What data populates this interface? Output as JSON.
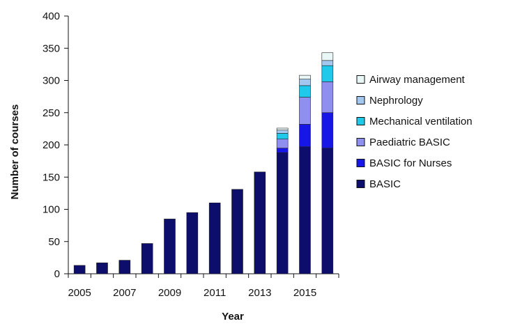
{
  "chart_data": {
    "type": "bar",
    "stacked": true,
    "title": "",
    "xlabel": "Year",
    "ylabel": "Number of courses",
    "categories": [
      "2005",
      "2006",
      "2007",
      "2008",
      "2009",
      "2010",
      "2011",
      "2012",
      "2013",
      "2014",
      "2015",
      "2016"
    ],
    "x_tick_labels": [
      "2005",
      "2007",
      "2009",
      "2011",
      "2013",
      "2015"
    ],
    "ylim": [
      0,
      400
    ],
    "y_ticks": [
      0,
      50,
      100,
      150,
      200,
      250,
      300,
      350,
      400
    ],
    "grid": false,
    "legend_position": "right",
    "series": [
      {
        "name": "BASIC",
        "color": "#0d0d6b",
        "values": [
          13,
          17,
          21,
          47,
          85,
          95,
          110,
          131,
          158,
          188,
          197,
          195
        ]
      },
      {
        "name": "BASIC for Nurses",
        "color": "#1616e6",
        "values": [
          0,
          0,
          0,
          0,
          0,
          0,
          0,
          0,
          0,
          7,
          35,
          55
        ]
      },
      {
        "name": "Paediatric BASIC",
        "color": "#8f8ff0",
        "values": [
          0,
          0,
          0,
          0,
          0,
          0,
          0,
          0,
          0,
          14,
          42,
          48
        ]
      },
      {
        "name": "Mechanical ventilation",
        "color": "#1fc9ea",
        "values": [
          0,
          0,
          0,
          0,
          0,
          0,
          0,
          0,
          0,
          9,
          18,
          25
        ]
      },
      {
        "name": "Nephrology",
        "color": "#a3c7ef",
        "values": [
          0,
          0,
          0,
          0,
          0,
          0,
          0,
          0,
          0,
          5,
          10,
          8
        ]
      },
      {
        "name": "Airway management",
        "color": "#e9f8f6",
        "values": [
          0,
          0,
          0,
          0,
          0,
          0,
          0,
          0,
          0,
          3,
          6,
          12
        ]
      }
    ]
  }
}
